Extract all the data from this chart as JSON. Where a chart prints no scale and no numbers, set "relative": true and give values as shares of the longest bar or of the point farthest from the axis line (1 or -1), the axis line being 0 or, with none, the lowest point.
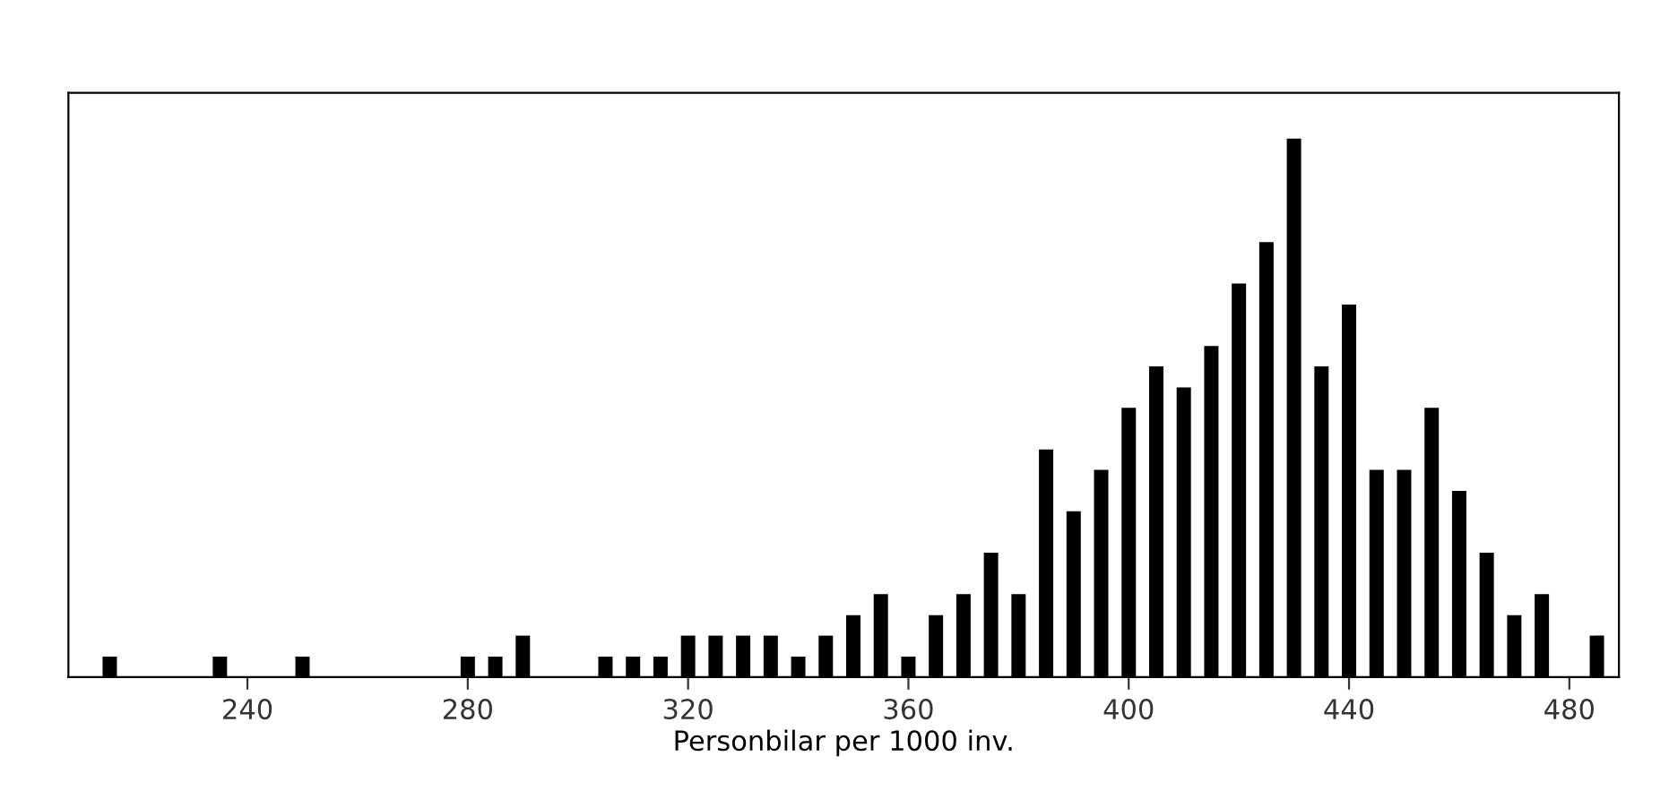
{
  "chart_data": {
    "type": "bar",
    "relative": true,
    "xlabel": "Personbilar per 1000 inv.",
    "xlim": [
      207.5,
      489
    ],
    "xticks": [
      240,
      280,
      320,
      360,
      400,
      440,
      480
    ],
    "tick_labels": "x",
    "grid": false,
    "legend": false,
    "color": "#000000",
    "x": [
      215,
      235,
      250,
      280,
      285,
      290,
      305,
      310,
      315,
      320,
      325,
      330,
      335,
      340,
      345,
      350,
      355,
      360,
      365,
      370,
      375,
      380,
      385,
      390,
      395,
      400,
      405,
      410,
      415,
      420,
      425,
      430,
      435,
      440,
      445,
      450,
      455,
      460,
      465,
      470,
      475,
      485
    ],
    "values": [
      0.038,
      0.038,
      0.038,
      0.038,
      0.038,
      0.077,
      0.038,
      0.038,
      0.038,
      0.077,
      0.077,
      0.077,
      0.077,
      0.038,
      0.077,
      0.115,
      0.154,
      0.038,
      0.115,
      0.154,
      0.231,
      0.154,
      0.423,
      0.308,
      0.385,
      0.5,
      0.577,
      0.538,
      0.615,
      0.731,
      0.808,
      1,
      0.577,
      0.692,
      0.385,
      0.385,
      0.5,
      0.346,
      0.231,
      0.115,
      0.154,
      0.077
    ]
  }
}
